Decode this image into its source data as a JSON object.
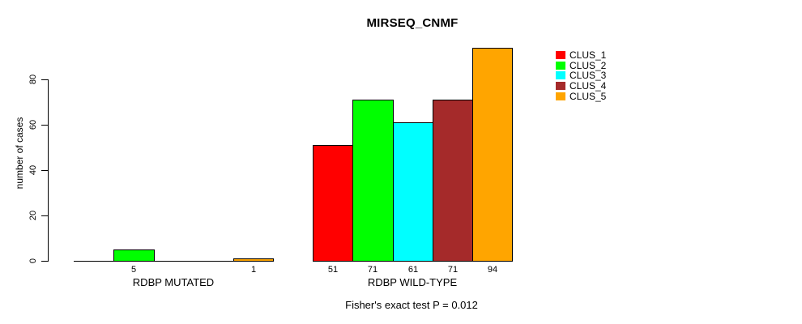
{
  "chart_data": {
    "type": "bar",
    "title": "MIRSEQ_CNMF",
    "ylabel": "number of cases",
    "xlabel": "",
    "categories": [
      "RDBP MUTATED",
      "RDBP WILD-TYPE"
    ],
    "series": [
      {
        "name": "CLUS_1",
        "color": "#FF0000",
        "values": [
          0,
          51
        ]
      },
      {
        "name": "CLUS_2",
        "color": "#00FF00",
        "values": [
          5,
          71
        ]
      },
      {
        "name": "CLUS_3",
        "color": "#00FFFF",
        "values": [
          0,
          61
        ]
      },
      {
        "name": "CLUS_4",
        "color": "#A52A2A",
        "values": [
          0,
          71
        ]
      },
      {
        "name": "CLUS_5",
        "color": "#FFA500",
        "values": [
          1,
          94
        ]
      }
    ],
    "value_labels": [
      [
        "",
        "5",
        "",
        "",
        "1"
      ],
      [
        "51",
        "71",
        "61",
        "71",
        "94"
      ]
    ],
    "yticks": [
      0,
      20,
      40,
      60,
      80
    ],
    "ylim": [
      0,
      94
    ],
    "grid": false,
    "legend_position": "right",
    "footnote": "Fisher's exact test P = 0.012"
  }
}
